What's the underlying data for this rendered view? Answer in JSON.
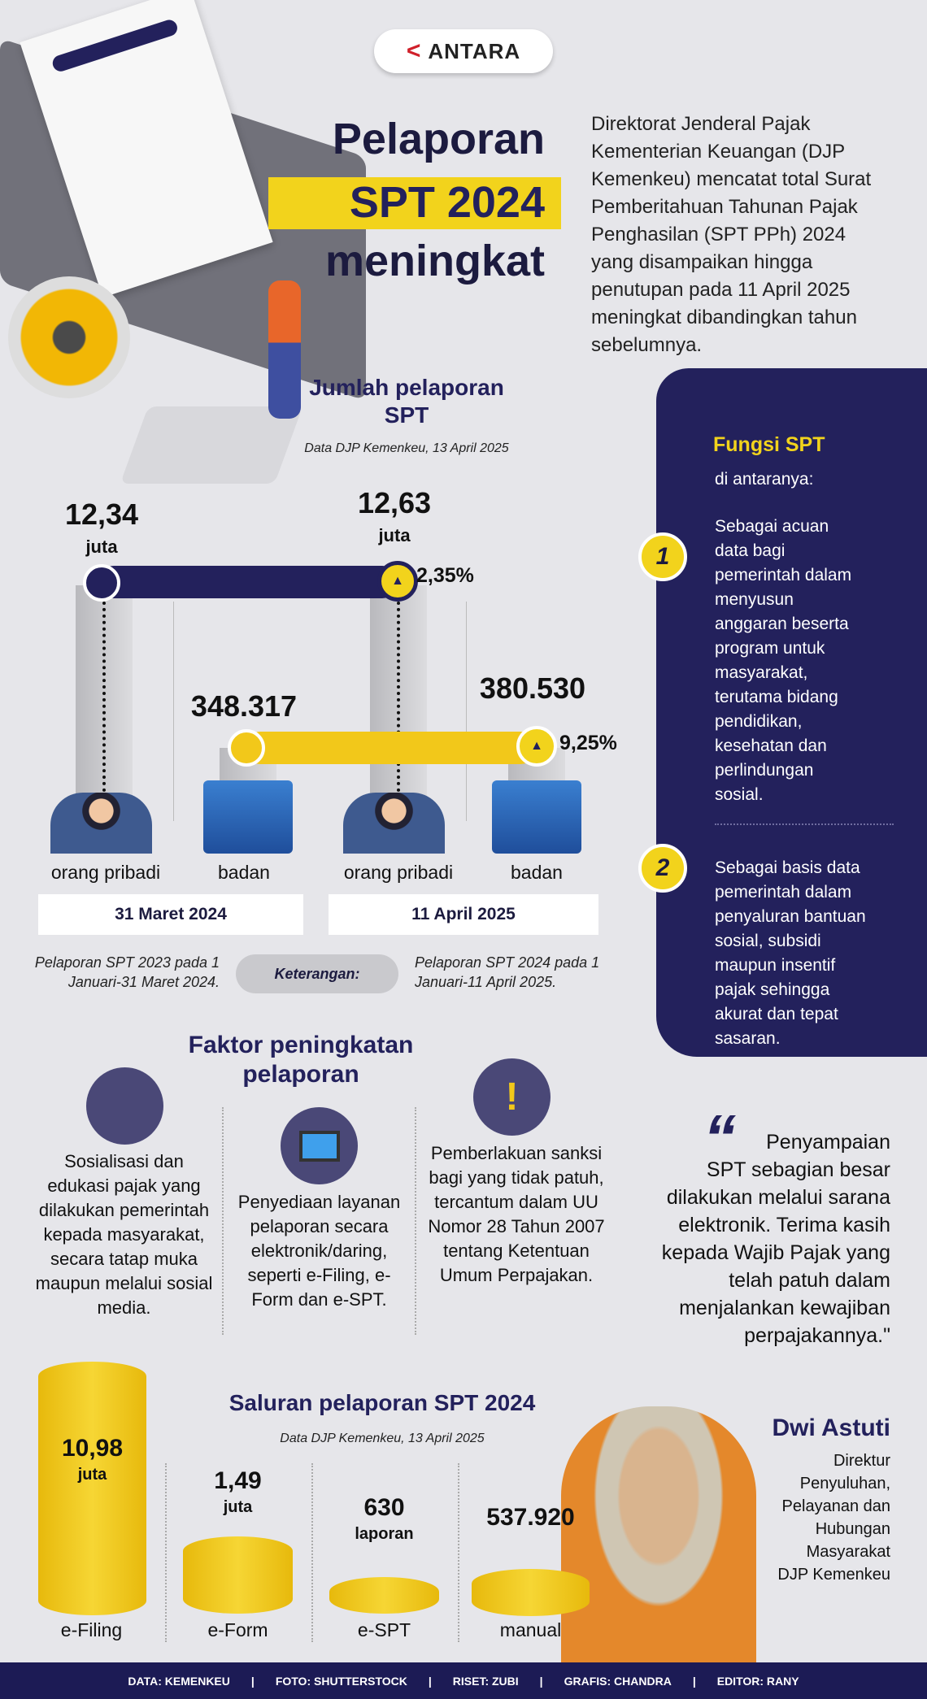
{
  "logo": {
    "text": "ANTARA"
  },
  "title": {
    "line1": "Pelaporan",
    "line2": "SPT 2024",
    "line3": "meningkat"
  },
  "intro": "Direktorat Jenderal Pajak Kementerian Keuangan (DJP Kemenkeu) mencatat total Surat Pemberitahuan Tahunan Pajak Penghasilan (SPT PPh) 2024 yang disampaikan hingga penutupan pada 11 April 2025 meningkat dibandingkan tahun sebelumnya.",
  "jumlah": {
    "title": "Jumlah pelaporan SPT",
    "source": "Data DJP Kemenkeu, 13 April 2025",
    "op_2024": "12,34",
    "op_2025": "12,63",
    "unit": "juta",
    "op_growth": "2,35%",
    "badan_2024": "348.317",
    "badan_2025": "380.530",
    "badan_growth": "9,25%",
    "labels": [
      "orang pribadi",
      "badan",
      "orang pribadi",
      "badan"
    ],
    "dates": [
      "31 Maret 2024",
      "11 April 2025"
    ],
    "ket_left": "Pelaporan SPT 2023 pada 1 Januari-31 Maret 2024.",
    "ket_label": "Keterangan:",
    "ket_right": "Pelaporan SPT 2024 pada 1 Januari-11 April 2025."
  },
  "fungsi": {
    "title": "Fungsi SPT",
    "subtitle": "di antaranya:",
    "items": [
      {
        "n": "1",
        "text": "Sebagai acuan data bagi pemerintah dalam menyusun anggaran beserta program untuk masyarakat, terutama bidang pendidikan, kesehatan dan perlindungan sosial."
      },
      {
        "n": "2",
        "text": "Sebagai basis data pemerintah dalam penyaluran bantuan sosial, subsidi maupun insentif pajak sehingga akurat dan tepat sasaran."
      }
    ]
  },
  "faktor": {
    "title": "Faktor peningkatan pelaporan",
    "items": [
      "Sosialisasi dan edukasi pajak yang dilakukan pemerintah kepada masyarakat, secara tatap muka maupun melalui sosial media.",
      "Penyediaan layanan pelaporan secara elektronik/daring, seperti e-Filing, e-Form dan e-SPT.",
      "Pemberlakuan sanksi bagi yang tidak patuh, tercantum dalam UU Nomor 28 Tahun 2007 tentang Ketentuan Umum Perpajakan."
    ]
  },
  "quote": {
    "mark": "“",
    "text": "Penyampaian SPT sebagian besar dilakukan melalui sarana elektronik. Terima kasih kepada Wajib Pajak yang telah patuh dalam menjalankan kewajiban perpajakannya.\"",
    "name": "Dwi Astuti",
    "role": "Direktur Penyuluhan, Pelayanan dan Hubungan Masyarakat DJP Kemenkeu"
  },
  "saluran": {
    "title": "Saluran pelaporan SPT 2024",
    "source": "Data DJP Kemenkeu, 13 April 2025",
    "items": [
      {
        "value": "10,98",
        "unit": "juta",
        "label": "e-Filing"
      },
      {
        "value": "1,49",
        "unit": "juta",
        "label": "e-Form"
      },
      {
        "value": "630",
        "unit": "laporan",
        "label": "e-SPT"
      },
      {
        "value": "537.920",
        "unit": "",
        "label": "manual"
      }
    ]
  },
  "footer": [
    "DATA: KEMENKEU",
    "|",
    "FOTO: SHUTTERSTOCK",
    "|",
    "RISET: ZUBI",
    "|",
    "GRAFIS: CHANDRA",
    "|",
    "EDITOR: RANY"
  ],
  "colors": {
    "navy": "#23215c",
    "yellow": "#f2d31c",
    "bg": "#e6e6ea"
  }
}
